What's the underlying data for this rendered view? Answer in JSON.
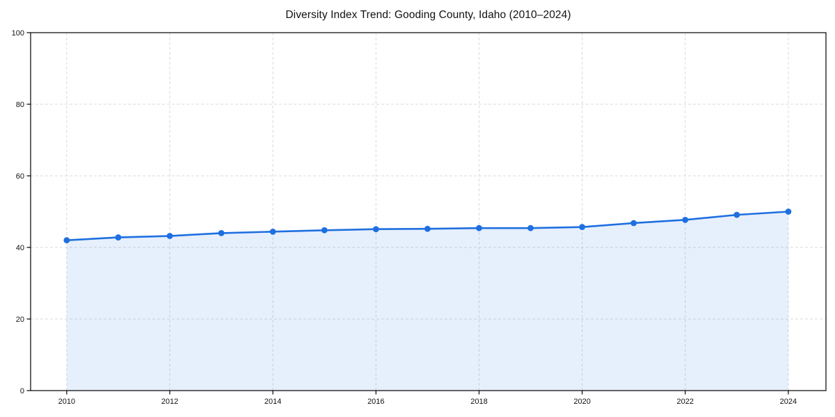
{
  "chart_data": {
    "type": "area",
    "title": "Diversity Index Trend: Gooding County, Idaho (2010–2024)",
    "x": [
      2010,
      2011,
      2012,
      2013,
      2014,
      2015,
      2016,
      2017,
      2018,
      2019,
      2020,
      2021,
      2022,
      2023,
      2024
    ],
    "values": [
      42.0,
      42.8,
      43.2,
      44.0,
      44.4,
      44.8,
      45.1,
      45.2,
      45.4,
      45.4,
      45.7,
      46.8,
      47.7,
      49.1,
      50.0
    ],
    "xlabel": "",
    "ylabel": "",
    "xticks": [
      2010,
      2012,
      2014,
      2016,
      2018,
      2020,
      2022,
      2024
    ],
    "yticks": [
      0,
      20,
      40,
      60,
      80,
      100
    ],
    "xlim": [
      2009.3,
      2024.73
    ],
    "ylim": [
      0,
      100
    ],
    "grid": true,
    "grid_style": "dashed",
    "legend": false,
    "marker": "circle",
    "colors": {
      "line": "#1e6fe0",
      "marker": "#1e6fe0",
      "area_fill": "#1e6fe0",
      "area_fill_opacity": "0.11",
      "grid": "#dadada",
      "axis": "#000000",
      "text": "#111111",
      "background": "#ffffff"
    }
  }
}
